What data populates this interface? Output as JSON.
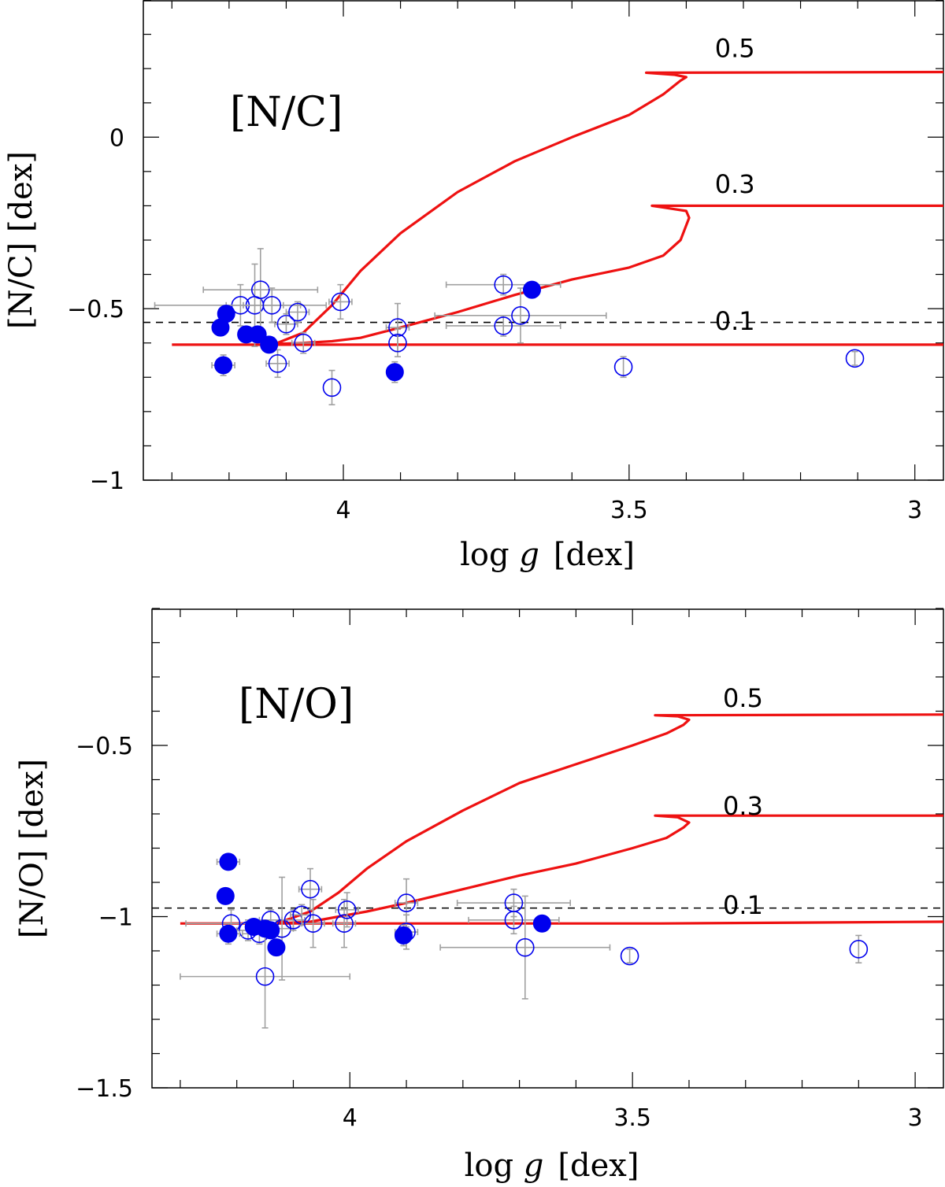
{
  "chart_data": [
    {
      "type": "scatter",
      "panel_label": "[N/C]",
      "xlabel_prefix": "log ",
      "xlabel_var": "g",
      "xlabel_unit": "[dex]",
      "ylabel": "[N/C] [dex]",
      "xlim": [
        4.35,
        2.95
      ],
      "ylim": [
        -1.0,
        0.4
      ],
      "xticks": [
        {
          "value": 4,
          "label": "4"
        },
        {
          "value": 3.5,
          "label": "3.5"
        },
        {
          "value": 3,
          "label": "3"
        }
      ],
      "yticks": [
        {
          "value": 0,
          "label": "0"
        },
        {
          "value": -0.5,
          "label": "−0.5"
        },
        {
          "value": -1,
          "label": "−1"
        }
      ],
      "reference_line": {
        "y": -0.54,
        "style": "dashed",
        "color": "#000000"
      },
      "model_color": "#ee1111",
      "filled_color": "#0000ee",
      "open_color": "#0000ee",
      "errorbar_color": "#a0a0a0",
      "models": [
        {
          "label": "0.1",
          "label_x": 3.35,
          "label_y": -0.555,
          "points": [
            [
              4.3,
              -0.605
            ],
            [
              4.1,
              -0.605
            ],
            [
              3.97,
              -0.605
            ],
            [
              3.8,
              -0.605
            ],
            [
              3.6,
              -0.605
            ],
            [
              3.45,
              -0.605
            ],
            [
              2.95,
              -0.605
            ]
          ]
        },
        {
          "label": "0.3",
          "label_x": 3.35,
          "label_y": -0.155,
          "points": [
            [
              4.12,
              -0.603
            ],
            [
              4.07,
              -0.6
            ],
            [
              4.02,
              -0.595
            ],
            [
              3.97,
              -0.585
            ],
            [
              3.9,
              -0.555
            ],
            [
              3.8,
              -0.51
            ],
            [
              3.7,
              -0.46
            ],
            [
              3.6,
              -0.415
            ],
            [
              3.5,
              -0.38
            ],
            [
              3.44,
              -0.345
            ],
            [
              3.41,
              -0.3
            ],
            [
              3.395,
              -0.235
            ],
            [
              3.4,
              -0.215
            ],
            [
              3.44,
              -0.205
            ],
            [
              3.46,
              -0.2
            ],
            [
              2.95,
              -0.2
            ]
          ]
        },
        {
          "label": "0.5",
          "label_x": 3.35,
          "label_y": 0.24,
          "points": [
            [
              4.12,
              -0.603
            ],
            [
              4.07,
              -0.57
            ],
            [
              4.02,
              -0.49
            ],
            [
              3.97,
              -0.39
            ],
            [
              3.9,
              -0.28
            ],
            [
              3.8,
              -0.16
            ],
            [
              3.7,
              -0.07
            ],
            [
              3.6,
              0.0
            ],
            [
              3.5,
              0.065
            ],
            [
              3.44,
              0.125
            ],
            [
              3.41,
              0.165
            ],
            [
              3.4,
              0.175
            ],
            [
              3.42,
              0.182
            ],
            [
              3.47,
              0.188
            ],
            [
              2.95,
              0.19
            ]
          ]
        }
      ],
      "filled_points": [
        {
          "x": 4.215,
          "y": -0.555,
          "xerr": 0,
          "yerr": 0
        },
        {
          "x": 4.205,
          "y": -0.515,
          "xerr": 0,
          "yerr": 0
        },
        {
          "x": 4.21,
          "y": -0.665,
          "xerr": 0.02,
          "yerr": 0.03
        },
        {
          "x": 4.17,
          "y": -0.575,
          "xerr": 0,
          "yerr": 0
        },
        {
          "x": 4.15,
          "y": -0.575,
          "xerr": 0,
          "yerr": 0
        },
        {
          "x": 4.13,
          "y": -0.605,
          "xerr": 0,
          "yerr": 0
        },
        {
          "x": 3.91,
          "y": -0.685,
          "xerr": 0,
          "yerr": 0.03
        },
        {
          "x": 3.67,
          "y": -0.445,
          "xerr": 0,
          "yerr": 0
        }
      ],
      "open_points": [
        {
          "x": 4.18,
          "y": -0.49,
          "xerr": 0.15,
          "yerr": 0.06
        },
        {
          "x": 4.155,
          "y": -0.49,
          "xerr": 0.05,
          "yerr": 0.12
        },
        {
          "x": 4.145,
          "y": -0.445,
          "xerr": 0.1,
          "yerr": 0.12
        },
        {
          "x": 4.125,
          "y": -0.49,
          "xerr": 0.05,
          "yerr": 0.05
        },
        {
          "x": 4.115,
          "y": -0.66,
          "xerr": 0.02,
          "yerr": 0.04
        },
        {
          "x": 4.1,
          "y": -0.545,
          "xerr": 0.02,
          "yerr": 0.03
        },
        {
          "x": 4.08,
          "y": -0.51,
          "xerr": 0.02,
          "yerr": 0.03
        },
        {
          "x": 4.07,
          "y": -0.6,
          "xerr": 0.02,
          "yerr": 0.03
        },
        {
          "x": 4.02,
          "y": -0.73,
          "xerr": 0,
          "yerr": 0.05
        },
        {
          "x": 4.005,
          "y": -0.48,
          "xerr": 0.02,
          "yerr": 0.05
        },
        {
          "x": 3.905,
          "y": -0.555,
          "xerr": 0.02,
          "yerr": 0.07
        },
        {
          "x": 3.905,
          "y": -0.6,
          "xerr": 0,
          "yerr": 0.04
        },
        {
          "x": 3.72,
          "y": -0.43,
          "xerr": 0.1,
          "yerr": 0.03
        },
        {
          "x": 3.72,
          "y": -0.55,
          "xerr": 0.1,
          "yerr": 0.03
        },
        {
          "x": 3.69,
          "y": -0.52,
          "xerr": 0.15,
          "yerr": 0.08
        },
        {
          "x": 3.51,
          "y": -0.67,
          "xerr": 0,
          "yerr": 0.03
        },
        {
          "x": 3.105,
          "y": -0.645,
          "xerr": 0,
          "yerr": 0.02
        }
      ]
    },
    {
      "type": "scatter",
      "panel_label": "[N/O]",
      "xlabel_prefix": "log ",
      "xlabel_var": "g",
      "xlabel_unit": "[dex]",
      "ylabel": "[N/O] [dex]",
      "xlim": [
        4.35,
        2.95
      ],
      "ylim": [
        -1.5,
        -0.1
      ],
      "xticks": [
        {
          "value": 4,
          "label": "4"
        },
        {
          "value": 3.5,
          "label": "3.5"
        },
        {
          "value": 3,
          "label": "3"
        }
      ],
      "yticks": [
        {
          "value": -0.5,
          "label": "−0.5"
        },
        {
          "value": -1,
          "label": "−1"
        },
        {
          "value": -1.5,
          "label": "−1.5"
        }
      ],
      "reference_line": {
        "y": -0.975,
        "style": "dashed",
        "color": "#000000"
      },
      "model_color": "#ee1111",
      "filled_color": "#0000ee",
      "open_color": "#0000ee",
      "errorbar_color": "#a0a0a0",
      "models": [
        {
          "label": "0.1",
          "label_x": 3.34,
          "label_y": -0.985,
          "points": [
            [
              4.3,
              -1.02
            ],
            [
              4.1,
              -1.02
            ],
            [
              3.97,
              -1.02
            ],
            [
              3.8,
              -1.02
            ],
            [
              3.6,
              -1.02
            ],
            [
              3.45,
              -1.02
            ],
            [
              2.95,
              -1.015
            ]
          ]
        },
        {
          "label": "0.3",
          "label_x": 3.34,
          "label_y": -0.695,
          "points": [
            [
              4.13,
              -1.02
            ],
            [
              4.07,
              -1.015
            ],
            [
              4.02,
              -1.0
            ],
            [
              3.97,
              -0.985
            ],
            [
              3.9,
              -0.96
            ],
            [
              3.8,
              -0.92
            ],
            [
              3.7,
              -0.88
            ],
            [
              3.6,
              -0.845
            ],
            [
              3.5,
              -0.8
            ],
            [
              3.44,
              -0.77
            ],
            [
              3.41,
              -0.74
            ],
            [
              3.4,
              -0.725
            ],
            [
              3.42,
              -0.71
            ],
            [
              3.46,
              -0.705
            ],
            [
              2.95,
              -0.705
            ]
          ]
        },
        {
          "label": "0.5",
          "label_x": 3.34,
          "label_y": -0.38,
          "points": [
            [
              4.13,
              -1.02
            ],
            [
              4.07,
              -0.985
            ],
            [
              4.02,
              -0.93
            ],
            [
              3.97,
              -0.86
            ],
            [
              3.9,
              -0.78
            ],
            [
              3.8,
              -0.69
            ],
            [
              3.7,
              -0.61
            ],
            [
              3.6,
              -0.555
            ],
            [
              3.5,
              -0.5
            ],
            [
              3.44,
              -0.465
            ],
            [
              3.41,
              -0.44
            ],
            [
              3.4,
              -0.425
            ],
            [
              3.42,
              -0.415
            ],
            [
              3.46,
              -0.412
            ],
            [
              2.95,
              -0.41
            ]
          ]
        }
      ],
      "filled_points": [
        {
          "x": 4.215,
          "y": -0.84,
          "xerr": 0.02,
          "yerr": 0.02
        },
        {
          "x": 4.22,
          "y": -0.94,
          "xerr": 0,
          "yerr": 0
        },
        {
          "x": 4.215,
          "y": -1.05,
          "xerr": 0.02,
          "yerr": 0.03
        },
        {
          "x": 4.17,
          "y": -1.03,
          "xerr": 0,
          "yerr": 0
        },
        {
          "x": 4.15,
          "y": -1.035,
          "xerr": 0,
          "yerr": 0
        },
        {
          "x": 4.14,
          "y": -1.04,
          "xerr": 0,
          "yerr": 0
        },
        {
          "x": 4.13,
          "y": -1.09,
          "xerr": 0,
          "yerr": 0
        },
        {
          "x": 3.905,
          "y": -1.055,
          "xerr": 0,
          "yerr": 0.03
        },
        {
          "x": 3.66,
          "y": -1.02,
          "xerr": 0,
          "yerr": 0
        }
      ],
      "open_points": [
        {
          "x": 4.21,
          "y": -1.02,
          "xerr": 0.08,
          "yerr": 0.04
        },
        {
          "x": 4.18,
          "y": -1.04,
          "xerr": 0.02,
          "yerr": 0.03
        },
        {
          "x": 4.16,
          "y": -1.05,
          "xerr": 0.03,
          "yerr": 0.03
        },
        {
          "x": 4.15,
          "y": -1.175,
          "xerr": 0.15,
          "yerr": 0.15
        },
        {
          "x": 4.14,
          "y": -1.01,
          "xerr": 0.02,
          "yerr": 0.03
        },
        {
          "x": 4.12,
          "y": -1.035,
          "xerr": 0.02,
          "yerr": 0.15
        },
        {
          "x": 4.1,
          "y": -1.01,
          "xerr": 0.02,
          "yerr": 0.03
        },
        {
          "x": 4.085,
          "y": -0.995,
          "xerr": 0.02,
          "yerr": 0.03
        },
        {
          "x": 4.07,
          "y": -0.92,
          "xerr": 0.02,
          "yerr": 0.06
        },
        {
          "x": 4.065,
          "y": -1.02,
          "xerr": 0.02,
          "yerr": 0.07
        },
        {
          "x": 4.01,
          "y": -1.02,
          "xerr": 0.02,
          "yerr": 0.07
        },
        {
          "x": 4.005,
          "y": -0.98,
          "xerr": 0.02,
          "yerr": 0.05
        },
        {
          "x": 3.9,
          "y": -0.96,
          "xerr": 0.02,
          "yerr": 0.07
        },
        {
          "x": 3.9,
          "y": -1.045,
          "xerr": 0.02,
          "yerr": 0.05
        },
        {
          "x": 3.71,
          "y": -0.96,
          "xerr": 0.1,
          "yerr": 0.04
        },
        {
          "x": 3.71,
          "y": -1.01,
          "xerr": 0.08,
          "yerr": 0.04
        },
        {
          "x": 3.69,
          "y": -1.09,
          "xerr": 0.15,
          "yerr": 0.15
        },
        {
          "x": 3.505,
          "y": -1.115,
          "xerr": 0,
          "yerr": 0.02
        },
        {
          "x": 3.1,
          "y": -1.095,
          "xerr": 0,
          "yerr": 0.04
        }
      ]
    }
  ]
}
